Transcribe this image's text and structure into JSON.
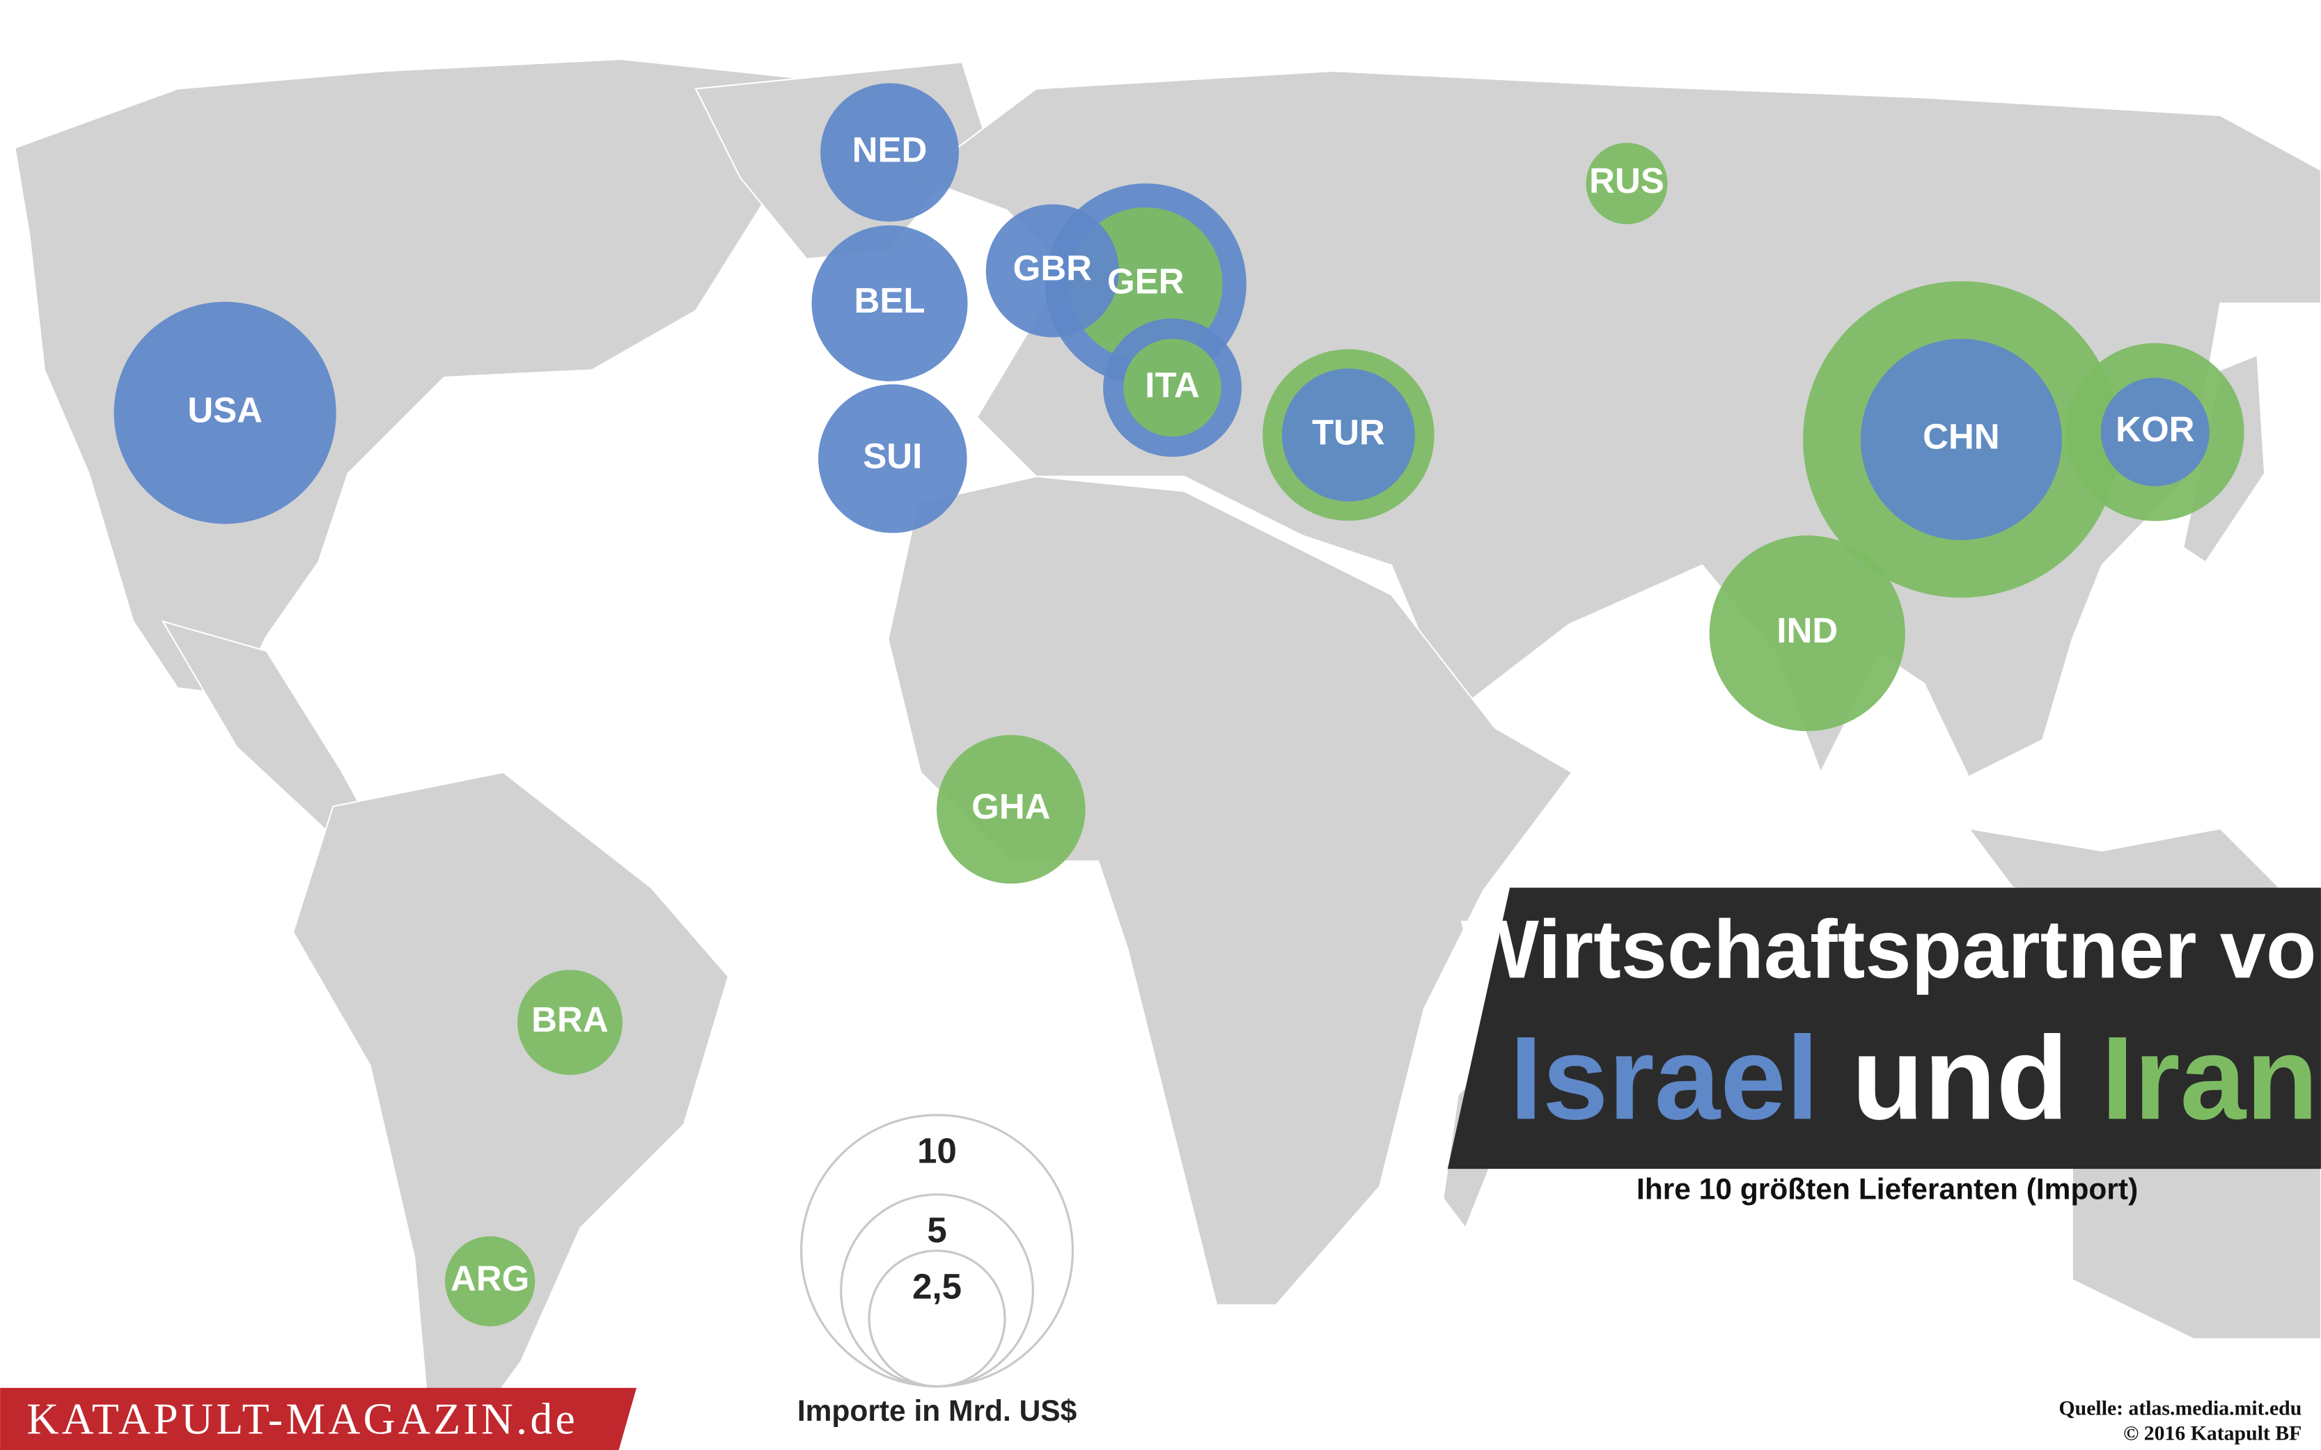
{
  "chart_data": {
    "type": "bubble-map",
    "title": "Wirtschaftspartner von",
    "subtitle": "Ihre 10 größten Lieferanten (Import)",
    "categories": [
      "USA",
      "NED",
      "BEL",
      "SUI",
      "GBR",
      "GER",
      "ITA",
      "TUR",
      "CHN",
      "KOR",
      "RUS",
      "IND",
      "GHA",
      "BRA",
      "ARG"
    ],
    "series": [
      {
        "name": "Israel",
        "color": "#5f88c9",
        "values": [
          6.7,
          2.6,
          3.3,
          3.0,
          2.4,
          5.5,
          2.6,
          2.4,
          5.5,
          1.6,
          null,
          null,
          null,
          null,
          null
        ]
      },
      {
        "name": "Iran",
        "color": "#7dbb63",
        "values": [
          null,
          null,
          null,
          null,
          null,
          3.2,
          1.3,
          4.0,
          13.6,
          4.3,
          0.9,
          5.2,
          3.0,
          1.5,
          1.1
        ]
      }
    ],
    "connector": "und",
    "size_legend": {
      "title": "Importe in Mrd. US$",
      "ticks": [
        10,
        5,
        {
          "value": 2.5,
          "label": "2,5"
        }
      ]
    },
    "brand": "KATAPULT-MAGAZIN.de",
    "source": "Quelle: atlas.media.mit.edu",
    "credit": "© 2016 Katapult BF"
  }
}
